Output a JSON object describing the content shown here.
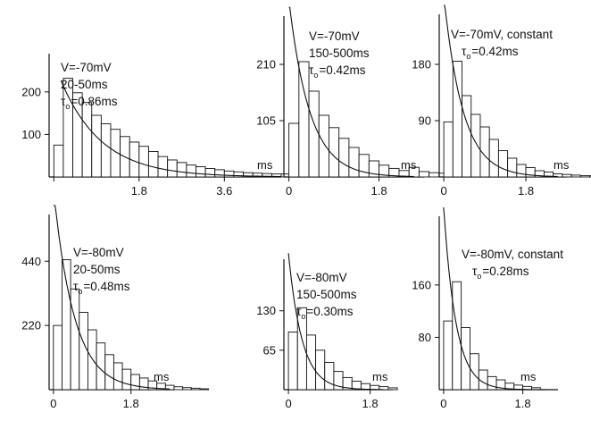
{
  "chart_data": [
    {
      "type": "bar",
      "x_unit": "ms",
      "bin_width_ms": 0.2,
      "annotation": {
        "voltage": "V=-70mV",
        "window": "20-50ms",
        "tau_symbol": "τ",
        "tau_sub": "o",
        "tau_value": "=0.86ms"
      },
      "x_ticks": [
        0,
        1.8,
        3.6
      ],
      "x_tick_labels": [
        "",
        "1.8",
        "3.6"
      ],
      "y_ticks": [
        100,
        200
      ],
      "y_tick_labels": [
        "100",
        "200"
      ],
      "xlim": [
        -0.1,
        4.8
      ],
      "ylim": [
        0,
        290
      ],
      "values": [
        75,
        232,
        198,
        175,
        145,
        125,
        112,
        95,
        82,
        72,
        60,
        48,
        40,
        34,
        28,
        24,
        20,
        17,
        14,
        12,
        10,
        9,
        8,
        7,
        7,
        6,
        6,
        5,
        5,
        4,
        4,
        3
      ],
      "fit": {
        "A": 270,
        "tau_ms": 0.86,
        "t_start": 0.15,
        "t_end": 4.8
      }
    },
    {
      "type": "bar",
      "x_unit": "ms",
      "bin_width_ms": 0.2,
      "annotation": {
        "voltage": "V=-70mV",
        "window": "150-500ms",
        "tau_symbol": "τ",
        "tau_sub": "o",
        "tau_value": "=0.42ms"
      },
      "x_ticks": [
        0,
        1.8
      ],
      "x_tick_labels": [
        "0",
        "1.8"
      ],
      "y_ticks": [
        105,
        210
      ],
      "y_tick_labels": [
        "105",
        "210"
      ],
      "xlim": [
        -0.1,
        2.7
      ],
      "ylim": [
        0,
        300
      ],
      "values": [
        100,
        215,
        160,
        115,
        92,
        72,
        55,
        42,
        30,
        22,
        16,
        12,
        18,
        10,
        8,
        7,
        5,
        5,
        4,
        3
      ],
      "fit": {
        "A": 330,
        "tau_ms": 0.42,
        "t_start": 0.0,
        "t_end": 2.5
      }
    },
    {
      "type": "bar",
      "x_unit": "ms",
      "bin_width_ms": 0.2,
      "annotation": {
        "voltage": "V=-70mV, constant",
        "window": "",
        "tau_symbol": "τ",
        "tau_sub": "o",
        "tau_value": "=0.42ms"
      },
      "x_ticks": [
        0,
        1.8
      ],
      "x_tick_labels": [
        "0",
        "1.8"
      ],
      "y_ticks": [
        90,
        180
      ],
      "y_tick_labels": [
        "90",
        "180"
      ],
      "xlim": [
        -0.1,
        2.7
      ],
      "ylim": [
        0,
        260
      ],
      "values": [
        88,
        185,
        130,
        100,
        80,
        60,
        42,
        30,
        20,
        15,
        10,
        8,
        5,
        4,
        3,
        2,
        2
      ],
      "fit": {
        "A": 290,
        "tau_ms": 0.42,
        "t_start": 0.0,
        "t_end": 2.5
      }
    },
    {
      "type": "bar",
      "x_unit": "ms",
      "bin_width_ms": 0.2,
      "annotation": {
        "voltage": "V=-80mV",
        "window": "20-50ms",
        "tau_symbol": "τ",
        "tau_sub": "o",
        "tau_value": "=0.48ms"
      },
      "x_ticks": [
        0,
        1.8
      ],
      "x_tick_labels": [
        "0",
        "1.8"
      ],
      "y_ticks": [
        220,
        440
      ],
      "y_tick_labels": [
        "220",
        "440"
      ],
      "xlim": [
        -0.1,
        2.8
      ],
      "ylim": [
        0,
        600
      ],
      "values": [
        220,
        445,
        345,
        265,
        205,
        160,
        120,
        92,
        70,
        52,
        40,
        30,
        22,
        15,
        10,
        7,
        5,
        3
      ],
      "fit": {
        "A": 690,
        "tau_ms": 0.48,
        "t_start": 0.0,
        "t_end": 2.7
      }
    },
    {
      "type": "bar",
      "x_unit": "ms",
      "bin_width_ms": 0.2,
      "annotation": {
        "voltage": "V=-80mV",
        "window": "150-500ms",
        "tau_symbol": "τ",
        "tau_sub": "o",
        "tau_value": "=0.30ms"
      },
      "x_ticks": [
        0,
        1.8
      ],
      "x_tick_labels": [
        "0",
        "1.8"
      ],
      "y_ticks": [
        65,
        130
      ],
      "y_tick_labels": [
        "65",
        "130"
      ],
      "xlim": [
        -0.1,
        2.3
      ],
      "ylim": [
        0,
        215
      ],
      "values": [
        95,
        135,
        90,
        65,
        45,
        30,
        20,
        14,
        10,
        7,
        5,
        3
      ],
      "fit": {
        "A": 225,
        "tau_ms": 0.3,
        "t_start": 0.0,
        "t_end": 2.1
      }
    },
    {
      "type": "bar",
      "x_unit": "ms",
      "bin_width_ms": 0.2,
      "annotation": {
        "voltage": "V=-80mV, constant",
        "window": "",
        "tau_symbol": "τ",
        "tau_sub": "o",
        "tau_value": "=0.28ms"
      },
      "x_ticks": [
        0,
        1.8
      ],
      "x_tick_labels": [
        "0",
        "1.8"
      ],
      "y_ticks": [
        80,
        160
      ],
      "y_tick_labels": [
        "80",
        "160"
      ],
      "xlim": [
        -0.1,
        2.6
      ],
      "ylim": [
        0,
        265
      ],
      "values": [
        105,
        165,
        95,
        55,
        30,
        20,
        15,
        10,
        7,
        5,
        3
      ],
      "fit": {
        "A": 280,
        "tau_ms": 0.28,
        "t_start": 0.0,
        "t_end": 2.4
      }
    }
  ]
}
